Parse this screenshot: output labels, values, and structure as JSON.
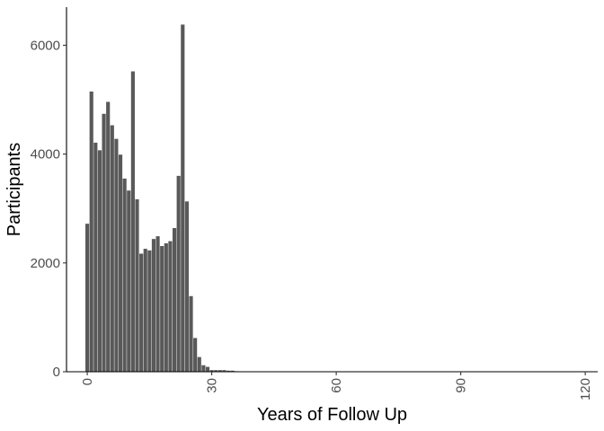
{
  "chart_data": {
    "type": "bar",
    "xlabel": "Years of Follow Up",
    "ylabel": "Participants",
    "xlim": [
      -5,
      123
    ],
    "ylim": [
      0,
      6700
    ],
    "x_ticks": [
      0,
      30,
      60,
      90,
      120
    ],
    "y_ticks": [
      0,
      2000,
      4000,
      6000
    ],
    "grid": false,
    "bar_color": "#595959",
    "x": [
      0,
      1,
      2,
      3,
      4,
      5,
      6,
      7,
      8,
      9,
      10,
      11,
      12,
      13,
      14,
      15,
      16,
      17,
      18,
      19,
      20,
      21,
      22,
      23,
      24,
      25,
      26,
      27,
      28,
      29,
      30,
      31,
      32,
      33,
      34,
      35,
      36
    ],
    "values": [
      2720,
      5150,
      4210,
      4070,
      4740,
      4960,
      4530,
      4280,
      3990,
      3550,
      3330,
      5520,
      3170,
      2170,
      2260,
      2230,
      2440,
      2490,
      2310,
      2360,
      2400,
      2640,
      3600,
      6380,
      3130,
      1390,
      620,
      270,
      120,
      90,
      30,
      30,
      30,
      30,
      20,
      20,
      10
    ]
  }
}
